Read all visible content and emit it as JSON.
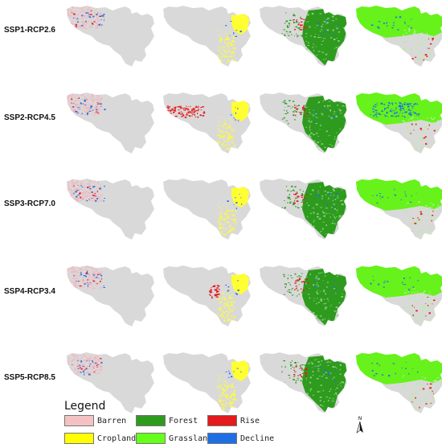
{
  "rows": [
    {
      "label": "SSP1-RCP2.6"
    },
    {
      "label": "SSP2-RCP4.5"
    },
    {
      "label": "SSP3-RCP7.0"
    },
    {
      "label": "SSP4-RCP3.4"
    },
    {
      "label": "SSP5-RCP8.5"
    }
  ],
  "columns": [
    "barren-change",
    "cropland-change",
    "forest-change",
    "grassland-change"
  ],
  "legend": {
    "title": "Legend",
    "items": [
      {
        "label": "Barren",
        "color": "#f4c2c2"
      },
      {
        "label": "Forest",
        "color": "#2e9b1e"
      },
      {
        "label": "Rise",
        "color": "#e41a1c"
      },
      {
        "label": "Cropland",
        "color": "#ffff00"
      },
      {
        "label": "Grassland",
        "color": "#66ff1a"
      },
      {
        "label": "Decline",
        "color": "#1e6fe6"
      }
    ]
  },
  "north_arrow": {
    "label": "N"
  },
  "colors": {
    "base": "#d9d9d9",
    "barren": "#f2b8bd",
    "cropland": "#ffff33",
    "forest": "#2e9b1e",
    "grassland": "#66f21a",
    "rise": "#e41a1c",
    "decline": "#1e6fe6"
  }
}
